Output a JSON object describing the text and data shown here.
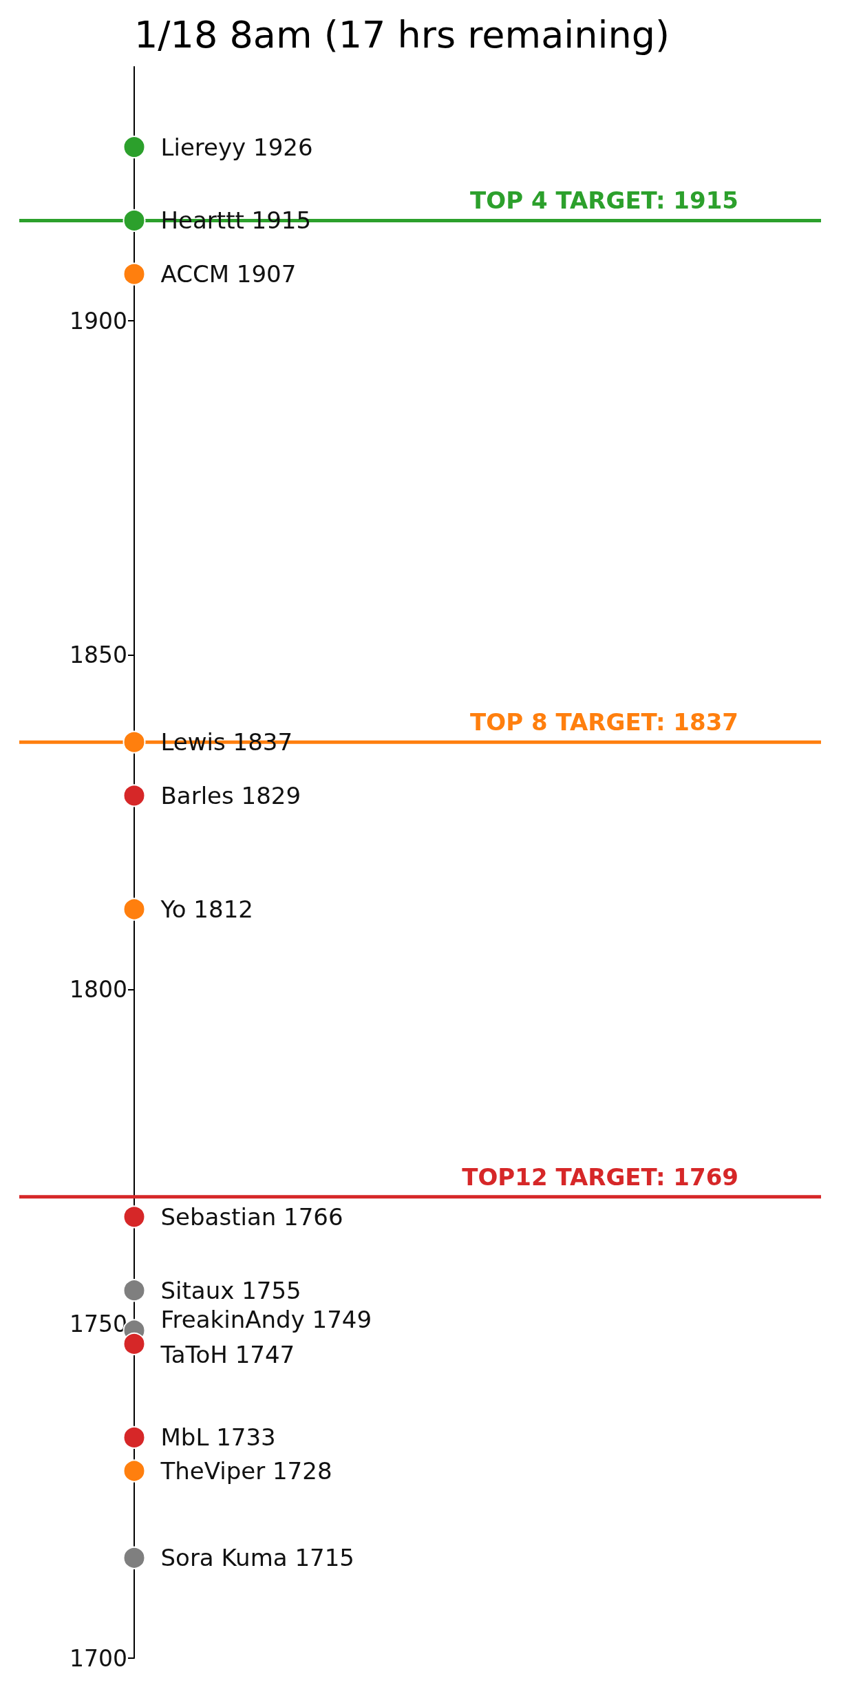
{
  "chart_data": {
    "type": "scatter",
    "title": "1/18 8am (17 hrs remaining)",
    "categories": [
      null
    ],
    "series": [
      {
        "color": "#2ca02c",
        "values": [
          1926
        ],
        "value_labels": [
          "Liereyy 1926"
        ]
      },
      {
        "color": "#2ca02c",
        "values": [
          1915
        ],
        "value_labels": [
          "Hearttt 1915"
        ]
      },
      {
        "color": "#ff7f0e",
        "values": [
          1907
        ],
        "value_labels": [
          "ACCM 1907"
        ]
      },
      {
        "color": "#ff7f0e",
        "values": [
          1837
        ],
        "value_labels": [
          "Lewis 1837"
        ]
      },
      {
        "color": "#d62728",
        "values": [
          1829
        ],
        "value_labels": [
          "Barles 1829"
        ]
      },
      {
        "color": "#ff7f0e",
        "values": [
          1812
        ],
        "value_labels": [
          "Yo 1812"
        ]
      },
      {
        "color": "#d62728",
        "values": [
          1766
        ],
        "value_labels": [
          "Sebastian 1766"
        ]
      },
      {
        "color": "#7f7f7f",
        "values": [
          1755
        ],
        "value_labels": [
          "Sitaux 1755"
        ]
      },
      {
        "color": "#7f7f7f",
        "values": [
          1749
        ],
        "value_labels": [
          "FreakinAndy 1749"
        ]
      },
      {
        "color": "#d62728",
        "values": [
          1747
        ],
        "value_labels": [
          "TaToH 1747"
        ]
      },
      {
        "color": "#d62728",
        "values": [
          1733
        ],
        "value_labels": [
          "MbL 1733"
        ]
      },
      {
        "color": "#ff7f0e",
        "values": [
          1728
        ],
        "value_labels": [
          "TheViper 1728"
        ]
      },
      {
        "color": "#7f7f7f",
        "values": [
          1715
        ],
        "value_labels": [
          "Sora Kuma 1715"
        ]
      }
    ],
    "ylim": [
      1700,
      1938
    ],
    "yticks": [
      1700,
      1750,
      1800,
      1850,
      1900
    ],
    "ref_lines": [
      {
        "axis": "y",
        "value": 1915,
        "label": "TOP 4 TARGET: 1915",
        "color": "#2ca02c"
      },
      {
        "axis": "y",
        "value": 1837,
        "label": "TOP 8 TARGET: 1837",
        "color": "#ff7f0e"
      },
      {
        "axis": "y",
        "value": 1769,
        "label": "TOP12 TARGET: 1769",
        "color": "#d62728"
      }
    ],
    "marker": "circle",
    "grid": false,
    "tick_labels": "y"
  }
}
